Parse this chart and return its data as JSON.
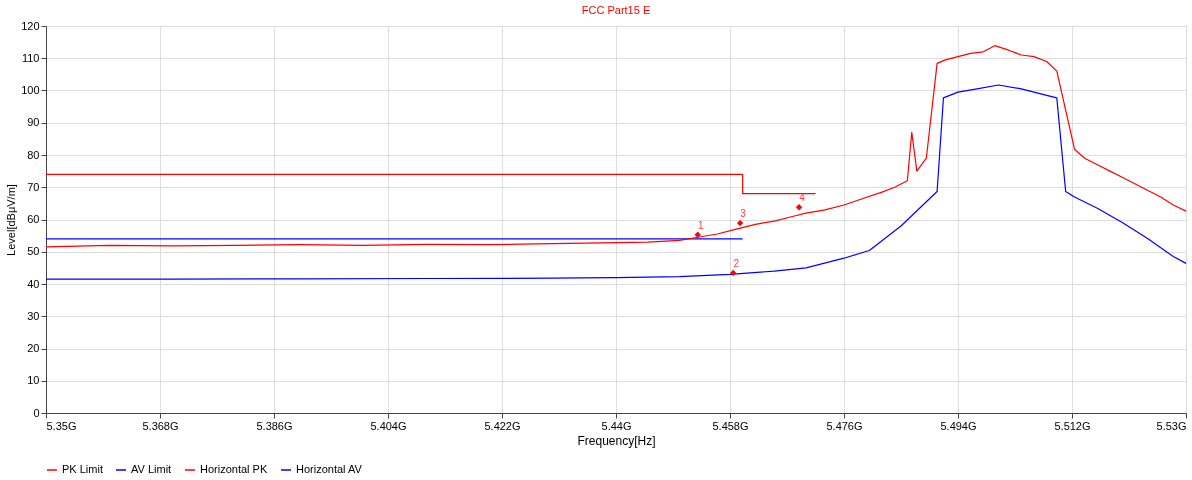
{
  "chart_data": {
    "type": "line",
    "title": "FCC Part15 E",
    "xlabel": "Frequency[Hz]",
    "ylabel": "Level[dBμV/m]",
    "xlim": [
      5.35,
      5.53
    ],
    "ylim": [
      0,
      120
    ],
    "xticks": [
      {
        "value": 5.35,
        "label": "5.35G"
      },
      {
        "value": 5.368,
        "label": "5.368G"
      },
      {
        "value": 5.386,
        "label": "5.386G"
      },
      {
        "value": 5.404,
        "label": "5.404G"
      },
      {
        "value": 5.422,
        "label": "5.422G"
      },
      {
        "value": 5.44,
        "label": "5.44G"
      },
      {
        "value": 5.458,
        "label": "5.458G"
      },
      {
        "value": 5.476,
        "label": "5.476G"
      },
      {
        "value": 5.494,
        "label": "5.494G"
      },
      {
        "value": 5.512,
        "label": "5.512G"
      },
      {
        "value": 5.53,
        "label": "5.53G"
      }
    ],
    "yticks": [
      0,
      10,
      20,
      30,
      40,
      50,
      60,
      70,
      80,
      90,
      100,
      110,
      120
    ],
    "grid": true,
    "legend": "bottom",
    "line_style": "solid",
    "series": [
      {
        "name": "PK Limit",
        "color": "#ff0000",
        "x": [
          5.35,
          5.46,
          5.46,
          5.4715
        ],
        "values": [
          74,
          74,
          68,
          68
        ]
      },
      {
        "name": "AV Limit",
        "color": "#0000ff",
        "x": [
          5.35,
          5.46
        ],
        "values": [
          54,
          54
        ]
      },
      {
        "name": "Horizontal PK",
        "color": "#ff0000",
        "x": [
          5.35,
          5.36,
          5.37,
          5.38,
          5.39,
          5.4,
          5.41,
          5.42,
          5.43,
          5.44,
          5.445,
          5.45,
          5.453,
          5.456,
          5.459,
          5.462,
          5.465,
          5.468,
          5.47,
          5.473,
          5.476,
          5.479,
          5.482,
          5.484,
          5.486,
          5.4867,
          5.4875,
          5.489,
          5.4907,
          5.492,
          5.494,
          5.496,
          5.498,
          5.4998,
          5.502,
          5.504,
          5.506,
          5.508,
          5.5096,
          5.5124,
          5.514,
          5.516,
          5.518,
          5.52,
          5.522,
          5.524,
          5.526,
          5.528,
          5.53
        ],
        "values": [
          51.5,
          52,
          51.8,
          52,
          52.2,
          52,
          52.3,
          52.2,
          52.5,
          52.8,
          53,
          53.5,
          54.5,
          55.5,
          57,
          58.5,
          59.5,
          61,
          62,
          63,
          64.5,
          66.5,
          68.5,
          70,
          72,
          87,
          75,
          79,
          108.4,
          109.5,
          110.5,
          111.5,
          112,
          113.9,
          112.5,
          111,
          110.5,
          109,
          106,
          81.8,
          79,
          77,
          75,
          73,
          71,
          69,
          67,
          64.5,
          62.6
        ]
      },
      {
        "name": "Horizontal AV",
        "color": "#0000ff",
        "x": [
          5.35,
          5.37,
          5.39,
          5.41,
          5.43,
          5.44,
          5.45,
          5.458,
          5.465,
          5.47,
          5.476,
          5.48,
          5.485,
          5.4907,
          5.4917,
          5.494,
          5.497,
          5.5004,
          5.504,
          5.508,
          5.5096,
          5.511,
          5.5124,
          5.516,
          5.52,
          5.524,
          5.528,
          5.53
        ],
        "values": [
          41.5,
          41.5,
          41.6,
          41.7,
          41.8,
          42,
          42.3,
          43,
          44,
          45,
          48,
          50.4,
          58,
          68.7,
          97.7,
          99.5,
          100.5,
          101.7,
          100.5,
          98.5,
          97.7,
          68.7,
          67,
          63.5,
          59,
          54,
          48.5,
          46.4
        ]
      },
      {
        "type": "scatter",
        "color": "#ff0000",
        "marker": "diamond",
        "x": [
          5.4529,
          5.4585,
          5.4596,
          5.4689
        ],
        "values": [
          55.3,
          43.4,
          58.9,
          63.8
        ]
      }
    ],
    "annotations": [
      {
        "text": "1",
        "x": 5.4529,
        "y": 55.3
      },
      {
        "text": "2",
        "x": 5.4585,
        "y": 43.4
      },
      {
        "text": "3",
        "x": 5.4596,
        "y": 58.9
      },
      {
        "text": "4",
        "x": 5.4689,
        "y": 63.8
      }
    ]
  }
}
